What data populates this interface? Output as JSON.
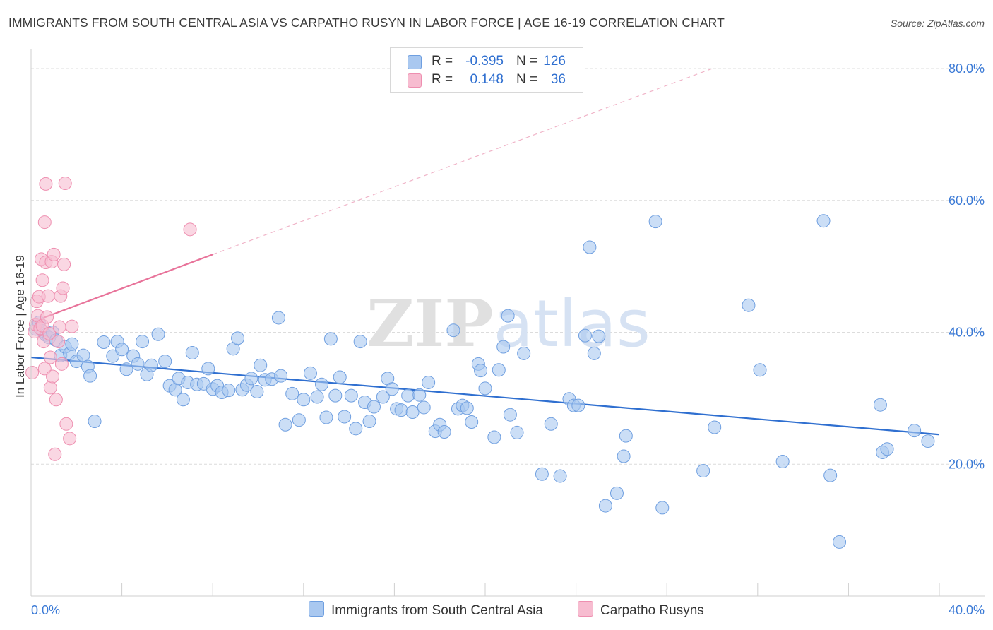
{
  "title": "IMMIGRANTS FROM SOUTH CENTRAL ASIA VS CARPATHO RUSYN IN LABOR FORCE | AGE 16-19 CORRELATION CHART",
  "source": "Source: ZipAtlas.com",
  "watermark": "ZIPatlas",
  "colors": {
    "blue_fill": "#a9c8f0",
    "blue_stroke": "#6f9fe0",
    "blue_line": "#2f6fd0",
    "pink_fill": "#f7bcd0",
    "pink_stroke": "#ee8fb0",
    "pink_line": "#e8739a",
    "grid": "#dcdcdc",
    "tick_label": "#3b7ad6"
  },
  "legend_top": [
    {
      "r_label": "R =",
      "r_value": "-0.395",
      "n_label": "N =",
      "n_value": "126",
      "color": "#a9c8f0"
    },
    {
      "r_label": "R =",
      "r_value": "0.148",
      "n_label": "N =",
      "n_value": "36",
      "color": "#f7bcd0"
    }
  ],
  "legend_bottom": [
    {
      "label": "Immigrants from South Central Asia",
      "color": "#a9c8f0"
    },
    {
      "label": "Carpatho Rusyns",
      "color": "#f7bcd0"
    }
  ],
  "chart_data": {
    "type": "scatter",
    "title": "IMMIGRANTS FROM SOUTH CENTRAL ASIA VS CARPATHO RUSYN IN LABOR FORCE | AGE 16-19 CORRELATION CHART",
    "xlabel": "",
    "ylabel": "In Labor Force | Age 16-19",
    "xlim": [
      0,
      40
    ],
    "ylim": [
      0,
      82
    ],
    "x_tick_labels": [
      "0.0%",
      "40.0%"
    ],
    "y_ticks": [
      20,
      40,
      60,
      80
    ],
    "y_tick_labels": [
      "20.0%",
      "40.0%",
      "60.0%",
      "80.0%"
    ],
    "grid": true,
    "legend_position": "top-center",
    "series": [
      {
        "name": "Immigrants from South Central Asia",
        "R": -0.395,
        "N": 126,
        "trend": {
          "x": [
            0,
            40
          ],
          "y": [
            36.2,
            24.5
          ],
          "style": "solid"
        },
        "points": [
          [
            0.2,
            40.5
          ],
          [
            0.35,
            41.5
          ],
          [
            0.5,
            40.2
          ],
          [
            0.65,
            39.6
          ],
          [
            0.8,
            39.2
          ],
          [
            0.95,
            40.0
          ],
          [
            1.1,
            38.8
          ],
          [
            1.3,
            36.5
          ],
          [
            1.5,
            37.8
          ],
          [
            1.7,
            36.8
          ],
          [
            1.8,
            38.2
          ],
          [
            2.0,
            35.6
          ],
          [
            2.3,
            36.5
          ],
          [
            2.5,
            34.8
          ],
          [
            2.6,
            33.4
          ],
          [
            2.8,
            26.5
          ],
          [
            3.2,
            38.5
          ],
          [
            3.6,
            36.4
          ],
          [
            3.8,
            38.6
          ],
          [
            4.0,
            37.4
          ],
          [
            4.2,
            34.4
          ],
          [
            4.5,
            36.4
          ],
          [
            4.7,
            35.2
          ],
          [
            4.9,
            38.6
          ],
          [
            5.1,
            33.6
          ],
          [
            5.3,
            35.0
          ],
          [
            5.6,
            39.7
          ],
          [
            5.9,
            35.6
          ],
          [
            6.1,
            31.9
          ],
          [
            6.35,
            31.3
          ],
          [
            6.5,
            33.0
          ],
          [
            6.7,
            29.8
          ],
          [
            6.9,
            32.4
          ],
          [
            7.1,
            36.9
          ],
          [
            7.3,
            32.1
          ],
          [
            7.6,
            32.2
          ],
          [
            7.8,
            34.5
          ],
          [
            8.0,
            31.4
          ],
          [
            8.2,
            31.9
          ],
          [
            8.4,
            30.9
          ],
          [
            8.7,
            31.2
          ],
          [
            8.9,
            37.5
          ],
          [
            9.1,
            39.1
          ],
          [
            9.3,
            31.3
          ],
          [
            9.5,
            32.0
          ],
          [
            9.7,
            33.0
          ],
          [
            9.95,
            31.0
          ],
          [
            10.1,
            35.0
          ],
          [
            10.3,
            32.8
          ],
          [
            10.6,
            32.9
          ],
          [
            10.9,
            42.2
          ],
          [
            11.0,
            33.4
          ],
          [
            11.2,
            26.0
          ],
          [
            11.5,
            30.7
          ],
          [
            11.8,
            26.7
          ],
          [
            12.0,
            29.8
          ],
          [
            12.3,
            33.8
          ],
          [
            12.6,
            30.2
          ],
          [
            12.8,
            32.1
          ],
          [
            13.0,
            27.1
          ],
          [
            13.2,
            39.0
          ],
          [
            13.4,
            30.4
          ],
          [
            13.6,
            33.2
          ],
          [
            13.8,
            27.2
          ],
          [
            14.1,
            30.4
          ],
          [
            14.3,
            25.4
          ],
          [
            14.5,
            38.6
          ],
          [
            14.7,
            29.4
          ],
          [
            14.9,
            26.5
          ],
          [
            15.1,
            28.7
          ],
          [
            15.5,
            30.2
          ],
          [
            15.7,
            33.0
          ],
          [
            15.9,
            31.4
          ],
          [
            16.1,
            28.4
          ],
          [
            16.3,
            28.2
          ],
          [
            16.6,
            30.4
          ],
          [
            16.8,
            27.9
          ],
          [
            17.1,
            30.5
          ],
          [
            17.3,
            28.6
          ],
          [
            17.5,
            32.4
          ],
          [
            17.8,
            25.0
          ],
          [
            18.0,
            26.0
          ],
          [
            18.2,
            24.9
          ],
          [
            18.6,
            40.3
          ],
          [
            18.8,
            28.4
          ],
          [
            19.0,
            28.9
          ],
          [
            19.2,
            28.5
          ],
          [
            19.4,
            26.4
          ],
          [
            19.7,
            35.2
          ],
          [
            19.8,
            34.2
          ],
          [
            20.0,
            31.5
          ],
          [
            20.4,
            24.1
          ],
          [
            20.6,
            34.3
          ],
          [
            20.8,
            37.8
          ],
          [
            21.0,
            42.5
          ],
          [
            21.1,
            27.5
          ],
          [
            21.4,
            24.8
          ],
          [
            21.7,
            36.8
          ],
          [
            22.5,
            18.5
          ],
          [
            22.9,
            26.1
          ],
          [
            23.3,
            18.2
          ],
          [
            23.7,
            29.9
          ],
          [
            23.9,
            28.9
          ],
          [
            24.1,
            28.9
          ],
          [
            24.4,
            39.5
          ],
          [
            24.6,
            52.9
          ],
          [
            24.8,
            36.8
          ],
          [
            25.0,
            39.4
          ],
          [
            25.3,
            13.7
          ],
          [
            25.8,
            15.6
          ],
          [
            26.1,
            21.2
          ],
          [
            26.2,
            24.3
          ],
          [
            27.5,
            56.8
          ],
          [
            27.8,
            13.4
          ],
          [
            29.6,
            19.0
          ],
          [
            30.1,
            25.6
          ],
          [
            31.6,
            44.1
          ],
          [
            32.1,
            34.3
          ],
          [
            33.1,
            20.4
          ],
          [
            34.9,
            56.9
          ],
          [
            35.2,
            18.3
          ],
          [
            35.6,
            8.2
          ],
          [
            37.4,
            29.0
          ],
          [
            37.5,
            21.8
          ],
          [
            37.7,
            22.3
          ],
          [
            38.9,
            25.1
          ],
          [
            39.5,
            23.5
          ]
        ]
      },
      {
        "name": "Carpatho Rusyns",
        "R": 0.148,
        "N": 36,
        "trend": {
          "x": [
            0,
            8
          ],
          "y": [
            41.5,
            51.8
          ],
          "style": "solid",
          "extension": {
            "x": [
              8,
              30
            ],
            "y": [
              51.8,
              80.0
            ],
            "style": "dashed"
          }
        },
        "points": [
          [
            0.05,
            33.9
          ],
          [
            0.15,
            40.1
          ],
          [
            0.2,
            41.2
          ],
          [
            0.25,
            44.7
          ],
          [
            0.3,
            42.5
          ],
          [
            0.35,
            45.4
          ],
          [
            0.4,
            40.6
          ],
          [
            0.45,
            51.1
          ],
          [
            0.5,
            47.9
          ],
          [
            0.5,
            41.0
          ],
          [
            0.55,
            38.6
          ],
          [
            0.6,
            34.5
          ],
          [
            0.65,
            50.6
          ],
          [
            0.65,
            62.5
          ],
          [
            0.6,
            56.7
          ],
          [
            0.7,
            42.3
          ],
          [
            0.75,
            45.5
          ],
          [
            0.8,
            39.8
          ],
          [
            0.85,
            31.6
          ],
          [
            0.85,
            36.2
          ],
          [
            0.9,
            50.7
          ],
          [
            0.95,
            33.3
          ],
          [
            1.0,
            51.8
          ],
          [
            1.05,
            21.5
          ],
          [
            1.1,
            29.8
          ],
          [
            1.2,
            38.6
          ],
          [
            1.25,
            40.8
          ],
          [
            1.3,
            45.5
          ],
          [
            1.35,
            35.2
          ],
          [
            1.4,
            46.7
          ],
          [
            1.45,
            50.3
          ],
          [
            1.5,
            62.6
          ],
          [
            1.55,
            26.1
          ],
          [
            1.7,
            23.9
          ],
          [
            1.8,
            40.9
          ],
          [
            7.0,
            55.6
          ]
        ]
      }
    ]
  }
}
